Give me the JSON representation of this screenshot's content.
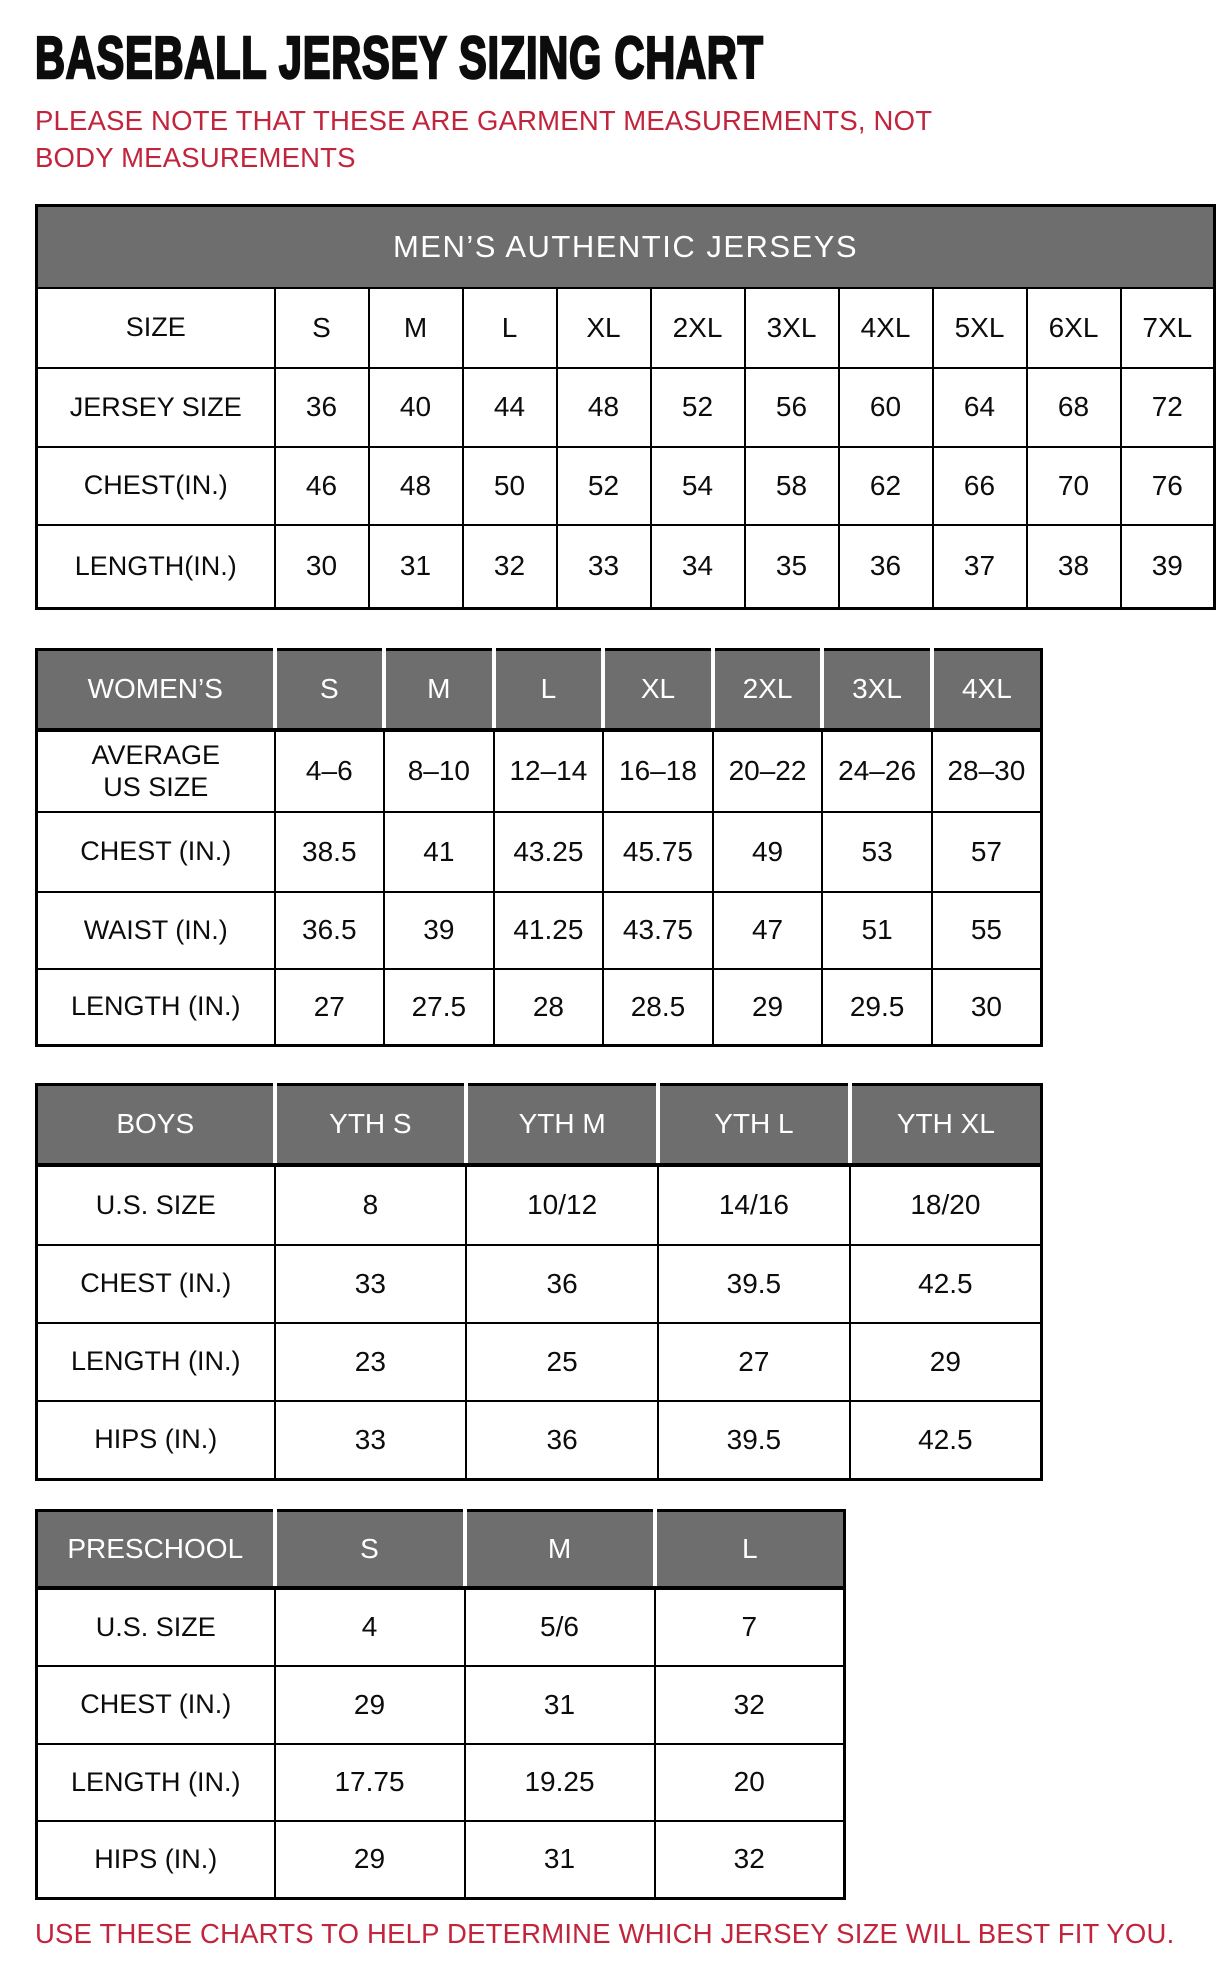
{
  "page": {
    "title": "BASEBALL JERSEY SIZING CHART",
    "note": "PLEASE NOTE THAT THESE ARE GARMENT MEASUREMENTS, NOT BODY MEASUREMENTS",
    "footer": "USE THESE CHARTS TO HELP DETERMINE WHICH JERSEY SIZE WILL BEST FIT YOU.",
    "colors": {
      "accent_red": "#C2243C",
      "header_gray": "#6E6E6E",
      "text_black": "#0c0c0c"
    }
  },
  "tables": [
    {
      "id": "mens",
      "banner": "MEN’S AUTHENTIC JERSEYS",
      "rows": [
        {
          "label": "SIZE",
          "values": [
            "S",
            "M",
            "L",
            "XL",
            "2XL",
            "3XL",
            "4XL",
            "5XL",
            "6XL",
            "7XL"
          ]
        },
        {
          "label": "JERSEY SIZE",
          "values": [
            "36",
            "40",
            "44",
            "48",
            "52",
            "56",
            "60",
            "64",
            "68",
            "72"
          ]
        },
        {
          "label": "CHEST(IN.)",
          "values": [
            "46",
            "48",
            "50",
            "52",
            "54",
            "58",
            "62",
            "66",
            "70",
            "76"
          ]
        },
        {
          "label": "LENGTH(IN.)",
          "values": [
            "30",
            "31",
            "32",
            "33",
            "34",
            "35",
            "36",
            "37",
            "38",
            "39"
          ]
        }
      ]
    },
    {
      "id": "womens",
      "header_label": "WOMEN’S",
      "header_sizes": [
        "S",
        "M",
        "L",
        "XL",
        "2XL",
        "3XL",
        "4XL"
      ],
      "rows": [
        {
          "label": "AVERAGE US SIZE",
          "label_lines": [
            "AVERAGE",
            "US SIZE"
          ],
          "values": [
            "4–6",
            "8–10",
            "12–14",
            "16–18",
            "20–22",
            "24–26",
            "28–30"
          ]
        },
        {
          "label": "CHEST (IN.)",
          "values": [
            "38.5",
            "41",
            "43.25",
            "45.75",
            "49",
            "53",
            "57"
          ]
        },
        {
          "label": "WAIST (IN.)",
          "values": [
            "36.5",
            "39",
            "41.25",
            "43.75",
            "47",
            "51",
            "55"
          ]
        },
        {
          "label": "LENGTH (IN.)",
          "values": [
            "27",
            "27.5",
            "28",
            "28.5",
            "29",
            "29.5",
            "30"
          ]
        }
      ]
    },
    {
      "id": "boys",
      "header_label": "BOYS",
      "header_sizes": [
        "YTH S",
        "YTH M",
        "YTH L",
        "YTH XL"
      ],
      "rows": [
        {
          "label": "U.S. SIZE",
          "values": [
            "8",
            "10/12",
            "14/16",
            "18/20"
          ]
        },
        {
          "label": "CHEST (IN.)",
          "values": [
            "33",
            "36",
            "39.5",
            "42.5"
          ]
        },
        {
          "label": "LENGTH (IN.)",
          "values": [
            "23",
            "25",
            "27",
            "29"
          ]
        },
        {
          "label": "HIPS (IN.)",
          "values": [
            "33",
            "36",
            "39.5",
            "42.5"
          ]
        }
      ]
    },
    {
      "id": "preschool",
      "header_label": "PRESCHOOL",
      "header_sizes": [
        "S",
        "M",
        "L"
      ],
      "rows": [
        {
          "label": "U.S. SIZE",
          "values": [
            "4",
            "5/6",
            "7"
          ]
        },
        {
          "label": "CHEST (IN.)",
          "values": [
            "29",
            "31",
            "32"
          ]
        },
        {
          "label": "LENGTH (IN.)",
          "values": [
            "17.75",
            "19.25",
            "20"
          ]
        },
        {
          "label": "HIPS (IN.)",
          "values": [
            "29",
            "31",
            "32"
          ]
        }
      ]
    }
  ]
}
